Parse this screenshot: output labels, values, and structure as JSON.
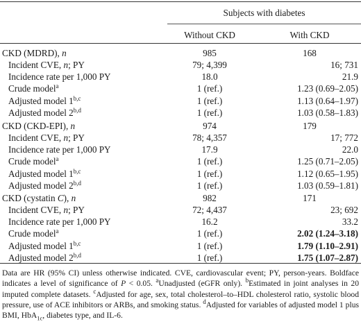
{
  "header": {
    "group": "Subjects with diabetes",
    "col1": "Without CKD",
    "col2": "With CKD"
  },
  "sections": [
    {
      "title_pre": "CKD (MDRD), ",
      "title_n": "n",
      "n1": "985",
      "n2": "168",
      "rows": [
        {
          "label_pre": "Incident CVE, ",
          "label_n": "n",
          "label_post": "; PY",
          "v1": "79; 4,399",
          "v2": "16; 731",
          "bold": false
        },
        {
          "label_pre": "Incidence rate per 1,000 PY",
          "v1": "18.0",
          "v2": "21.9",
          "bold": false
        },
        {
          "label_pre": "Crude model",
          "sup": "a",
          "v1": "1 (ref.)",
          "v2": "1.23 (0.69–2.05)",
          "bold": false
        },
        {
          "label_pre": "Adjusted model 1",
          "sup": "b,c",
          "v1": "1 (ref.)",
          "v2": "1.13 (0.64–1.97)",
          "bold": false
        },
        {
          "label_pre": "Adjusted model 2",
          "sup": "b,d",
          "v1": "1 (ref.)",
          "v2": "1.03 (0.58–1.83)",
          "bold": false
        }
      ]
    },
    {
      "title_pre": "CKD (CKD-EPI), ",
      "title_n": "n",
      "n1": "974",
      "n2": "179",
      "rows": [
        {
          "label_pre": "Incident CVE, ",
          "label_n": "n",
          "label_post": "; PY",
          "v1": "78; 4,357",
          "v2": "17; 772",
          "bold": false
        },
        {
          "label_pre": "Incidence rate per 1,000 PY",
          "v1": "17.9",
          "v2": "22.0",
          "bold": false
        },
        {
          "label_pre": "Crude model",
          "sup": "a",
          "v1": "1 (ref.)",
          "v2": "1.25 (0.71–2.05)",
          "bold": false
        },
        {
          "label_pre": "Adjusted model 1",
          "sup": "b,c",
          "v1": "1 (ref.)",
          "v2": "1.12 (0.65–1.95)",
          "bold": false
        },
        {
          "label_pre": "Adjusted model 2",
          "sup": "b,d",
          "v1": "1 (ref.)",
          "v2": "1.03 (0.59–1.81)",
          "bold": false
        }
      ]
    },
    {
      "title_pre": "CKD (cystatin ",
      "title_c": "C",
      "title_post": "), ",
      "title_n": "n",
      "n1": "982",
      "n2": "171",
      "rows": [
        {
          "label_pre": "Incident CVE, ",
          "label_n": "n",
          "label_post": "; PY",
          "v1": "72; 4,437",
          "v2": "23; 692",
          "bold": false
        },
        {
          "label_pre": "Incidence rate per 1,000 PY",
          "v1": "16.2",
          "v2": "33.2",
          "bold": false
        },
        {
          "label_pre": "Crude model",
          "sup": "a",
          "v1": "1 (ref.)",
          "v2": "2.02 (1.24–3.18)",
          "bold": true
        },
        {
          "label_pre": "Adjusted model 1",
          "sup": "b,c",
          "v1": "1 (ref.)",
          "v2": "1.79 (1.10–2.91)",
          "bold": true
        },
        {
          "label_pre": "Adjusted model 2",
          "sup": "b,d",
          "v1": "1 (ref.)",
          "v2": "1.75 (1.07–2.87)",
          "bold": true
        }
      ]
    }
  ],
  "footnote": {
    "p1": "Data are HR (95% CI) unless otherwise indicated. CVE, cardiovascular event; PY, person-years. Boldface indicates a level of significance of ",
    "p_var": "P",
    "p2": " < 0.05. ",
    "sup_a": "a",
    "a": "Unadjusted (eGFR only). ",
    "sup_b": "b",
    "b": "Estimated in joint analyses in 20 imputed complete datasets. ",
    "sup_c": "c",
    "c": "Adjusted for age, sex, total cholesterol–to–HDL cholesterol ratio, systolic blood pressure, use of ACE inhibitors or ARBs, and smoking status. ",
    "sup_d": "d",
    "d1": "Adjusted for variables of adjusted model 1 plus BMI, HbA",
    "d_sub": "1c",
    "d2": ", diabetes type, and IL-6."
  }
}
